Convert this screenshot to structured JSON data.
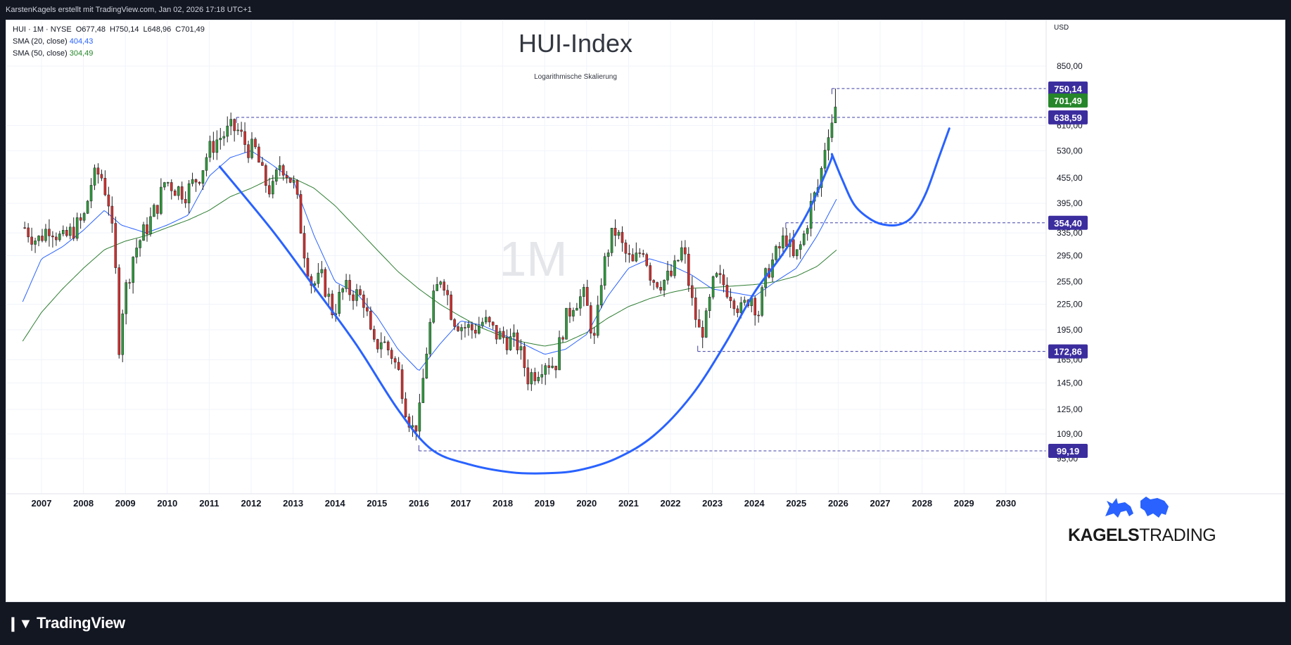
{
  "header": {
    "caption": "KarstenKagels erstellt mit TradingView.com, Jan 02, 2026 17:18 UTC+1"
  },
  "legend": {
    "symbol": "HUI · 1M · NYSE",
    "open": "O677,48",
    "high": "H750,14",
    "low": "L648,96",
    "close": "C701,49",
    "sma20_label": "SMA (20, close)",
    "sma20_value": "404,43",
    "sma50_label": "SMA (50, close)",
    "sma50_value": "304,49"
  },
  "footer": {
    "brand": "TradingView"
  },
  "watermark": {
    "brand_bold": "KAGELS",
    "brand_light": "TRADING"
  },
  "colors": {
    "up": "#26a69a",
    "up_body": "#2e9b3c",
    "down": "#d32f2f",
    "sma20": "#2962ff",
    "sma50": "#2e7d32",
    "pattern": "#2962ff",
    "level_line": "#3f3fa8",
    "label_bg": "#3b2d9e",
    "close_bg": "#26862a"
  },
  "chart_data": {
    "type": "candlestick",
    "title": "HUI-Index",
    "subtitle": "Logarithmische Skalierung",
    "interval_watermark": "1M",
    "currency": "USD",
    "log_scale": true,
    "ylim": [
      85,
      940
    ],
    "xlim": [
      2006.55,
      2031.35
    ],
    "grid": true,
    "y_ticks": [
      "850,00",
      "610,00",
      "530,00",
      "455,00",
      "395,00",
      "335,00",
      "295,00",
      "255,00",
      "225,00",
      "195,00",
      "165,00",
      "145,00",
      "125,00",
      "109,00",
      "95,00"
    ],
    "y_tick_values": [
      850,
      610,
      530,
      455,
      395,
      335,
      295,
      255,
      225,
      195,
      165,
      145,
      125,
      109,
      95
    ],
    "x_ticks": [
      "2007",
      "2008",
      "2009",
      "2010",
      "2011",
      "2012",
      "2013",
      "2014",
      "2015",
      "2016",
      "2017",
      "2018",
      "2019",
      "2020",
      "2021",
      "2022",
      "2023",
      "2024",
      "2025",
      "2026",
      "2027",
      "2028",
      "2029",
      "2030"
    ],
    "price_labels": [
      {
        "value": 750.14,
        "text": "750,14",
        "kind": "level"
      },
      {
        "value": 701.49,
        "text": "701,49",
        "kind": "close"
      },
      {
        "value": 638.59,
        "text": "638,59",
        "kind": "level"
      },
      {
        "value": 354.4,
        "text": "354,40",
        "kind": "level"
      },
      {
        "value": 172.86,
        "text": "172,86",
        "kind": "level"
      },
      {
        "value": 99.19,
        "text": "99,19",
        "kind": "level"
      }
    ],
    "levels": [
      {
        "value": 750.14,
        "from": 2025.85
      },
      {
        "value": 638.59,
        "from": 2011.65
      },
      {
        "value": 354.4,
        "from": 2024.75
      },
      {
        "value": 172.86,
        "from": 2022.65
      },
      {
        "value": 99.19,
        "from": 2016.0
      }
    ],
    "price_anchors": [
      [
        2006.6,
        345
      ],
      [
        2006.9,
        320
      ],
      [
        2007.2,
        350
      ],
      [
        2007.5,
        320
      ],
      [
        2007.8,
        345
      ],
      [
        2008.0,
        360
      ],
      [
        2008.2,
        450
      ],
      [
        2008.4,
        470
      ],
      [
        2008.6,
        400
      ],
      [
        2008.75,
        290
      ],
      [
        2008.85,
        180
      ],
      [
        2008.95,
        230
      ],
      [
        2009.2,
        300
      ],
      [
        2009.4,
        330
      ],
      [
        2009.6,
        360
      ],
      [
        2009.8,
        400
      ],
      [
        2009.95,
        450
      ],
      [
        2010.2,
        430
      ],
      [
        2010.45,
        420
      ],
      [
        2010.6,
        440
      ],
      [
        2010.8,
        470
      ],
      [
        2010.95,
        520
      ],
      [
        2011.15,
        560
      ],
      [
        2011.35,
        580
      ],
      [
        2011.55,
        600
      ],
      [
        2011.7,
        590
      ],
      [
        2011.9,
        540
      ],
      [
        2012.1,
        530
      ],
      [
        2012.3,
        450
      ],
      [
        2012.5,
        420
      ],
      [
        2012.7,
        500
      ],
      [
        2012.9,
        460
      ],
      [
        2013.05,
        430
      ],
      [
        2013.25,
        310
      ],
      [
        2013.45,
        250
      ],
      [
        2013.7,
        260
      ],
      [
        2013.95,
        215
      ],
      [
        2014.2,
        245
      ],
      [
        2014.45,
        240
      ],
      [
        2014.7,
        230
      ],
      [
        2014.9,
        175
      ],
      [
        2015.1,
        185
      ],
      [
        2015.35,
        170
      ],
      [
        2015.55,
        150
      ],
      [
        2015.7,
        125
      ],
      [
        2015.85,
        112
      ],
      [
        2016.0,
        118
      ],
      [
        2016.15,
        165
      ],
      [
        2016.35,
        230
      ],
      [
        2016.55,
        270
      ],
      [
        2016.8,
        210
      ],
      [
        2017.0,
        200
      ],
      [
        2017.3,
        195
      ],
      [
        2017.55,
        205
      ],
      [
        2017.85,
        190
      ],
      [
        2018.1,
        185
      ],
      [
        2018.35,
        180
      ],
      [
        2018.6,
        150
      ],
      [
        2018.8,
        155
      ],
      [
        2019.0,
        165
      ],
      [
        2019.25,
        160
      ],
      [
        2019.45,
        200
      ],
      [
        2019.7,
        230
      ],
      [
        2019.95,
        235
      ],
      [
        2020.2,
        180
      ],
      [
        2020.35,
        260
      ],
      [
        2020.55,
        320
      ],
      [
        2020.7,
        340
      ],
      [
        2020.9,
        300
      ],
      [
        2021.1,
        280
      ],
      [
        2021.35,
        310
      ],
      [
        2021.55,
        260
      ],
      [
        2021.8,
        255
      ],
      [
        2022.05,
        265
      ],
      [
        2022.3,
        310
      ],
      [
        2022.5,
        230
      ],
      [
        2022.7,
        190
      ],
      [
        2022.85,
        205
      ],
      [
        2023.05,
        260
      ],
      [
        2023.3,
        250
      ],
      [
        2023.5,
        235
      ],
      [
        2023.7,
        215
      ],
      [
        2023.9,
        240
      ],
      [
        2024.1,
        215
      ],
      [
        2024.3,
        270
      ],
      [
        2024.55,
        300
      ],
      [
        2024.75,
        330
      ],
      [
        2024.95,
        285
      ],
      [
        2025.15,
        320
      ],
      [
        2025.35,
        390
      ],
      [
        2025.55,
        440
      ],
      [
        2025.7,
        560
      ],
      [
        2025.8,
        620
      ],
      [
        2025.88,
        630
      ],
      [
        2025.96,
        701.49
      ]
    ],
    "sma20_anchors": [
      [
        2006.55,
        228
      ],
      [
        2007.0,
        290
      ],
      [
        2007.5,
        310
      ],
      [
        2008.0,
        340
      ],
      [
        2008.5,
        380
      ],
      [
        2008.9,
        350
      ],
      [
        2009.5,
        335
      ],
      [
        2010.0,
        350
      ],
      [
        2010.5,
        370
      ],
      [
        2011.0,
        460
      ],
      [
        2011.5,
        510
      ],
      [
        2012.0,
        530
      ],
      [
        2012.5,
        490
      ],
      [
        2013.0,
        450
      ],
      [
        2013.5,
        330
      ],
      [
        2014.0,
        255
      ],
      [
        2014.5,
        240
      ],
      [
        2015.0,
        210
      ],
      [
        2015.5,
        175
      ],
      [
        2016.0,
        155
      ],
      [
        2016.5,
        180
      ],
      [
        2017.0,
        205
      ],
      [
        2017.5,
        200
      ],
      [
        2018.0,
        190
      ],
      [
        2018.5,
        180
      ],
      [
        2019.0,
        170
      ],
      [
        2019.5,
        175
      ],
      [
        2020.0,
        190
      ],
      [
        2020.5,
        235
      ],
      [
        2021.0,
        275
      ],
      [
        2021.5,
        290
      ],
      [
        2022.0,
        280
      ],
      [
        2022.5,
        265
      ],
      [
        2023.0,
        245
      ],
      [
        2023.5,
        240
      ],
      [
        2024.0,
        235
      ],
      [
        2024.5,
        255
      ],
      [
        2025.0,
        275
      ],
      [
        2025.5,
        330
      ],
      [
        2025.96,
        404.43
      ]
    ],
    "sma50_anchors": [
      [
        2006.55,
        183
      ],
      [
        2007.0,
        215
      ],
      [
        2007.5,
        245
      ],
      [
        2008.0,
        275
      ],
      [
        2008.5,
        305
      ],
      [
        2009.0,
        320
      ],
      [
        2009.5,
        330
      ],
      [
        2010.0,
        345
      ],
      [
        2010.5,
        360
      ],
      [
        2011.0,
        380
      ],
      [
        2011.5,
        410
      ],
      [
        2012.0,
        430
      ],
      [
        2012.5,
        455
      ],
      [
        2013.0,
        455
      ],
      [
        2013.5,
        430
      ],
      [
        2014.0,
        390
      ],
      [
        2014.5,
        345
      ],
      [
        2015.0,
        305
      ],
      [
        2015.5,
        270
      ],
      [
        2016.0,
        245
      ],
      [
        2016.5,
        225
      ],
      [
        2017.0,
        210
      ],
      [
        2017.5,
        197
      ],
      [
        2018.0,
        188
      ],
      [
        2018.5,
        182
      ],
      [
        2019.0,
        178
      ],
      [
        2019.5,
        182
      ],
      [
        2020.0,
        192
      ],
      [
        2020.5,
        208
      ],
      [
        2021.0,
        222
      ],
      [
        2021.5,
        232
      ],
      [
        2022.0,
        240
      ],
      [
        2022.5,
        246
      ],
      [
        2023.0,
        247
      ],
      [
        2023.5,
        249
      ],
      [
        2024.0,
        251
      ],
      [
        2024.5,
        255
      ],
      [
        2025.0,
        263
      ],
      [
        2025.5,
        278
      ],
      [
        2025.96,
        304.49
      ]
    ],
    "cup_curve": [
      [
        2011.25,
        485
      ],
      [
        2012.5,
        340
      ],
      [
        2013.5,
        248
      ],
      [
        2014.5,
        180
      ],
      [
        2015.5,
        125
      ],
      [
        2016.3,
        100
      ],
      [
        2017.2,
        92
      ],
      [
        2018.2,
        88
      ],
      [
        2019.0,
        87.5
      ],
      [
        2019.8,
        89
      ],
      [
        2020.7,
        95
      ],
      [
        2021.6,
        108
      ],
      [
        2022.5,
        135
      ],
      [
        2023.3,
        180
      ],
      [
        2024.0,
        240
      ],
      [
        2024.7,
        300
      ],
      [
        2025.3,
        380
      ],
      [
        2025.8,
        495
      ],
      [
        2025.85,
        520
      ]
    ],
    "handle_curve": [
      [
        2025.85,
        520
      ],
      [
        2026.1,
        450
      ],
      [
        2026.4,
        390
      ],
      [
        2026.8,
        360
      ],
      [
        2027.15,
        350
      ],
      [
        2027.5,
        352
      ],
      [
        2027.8,
        370
      ],
      [
        2028.1,
        420
      ],
      [
        2028.4,
        510
      ],
      [
        2028.65,
        600
      ]
    ]
  }
}
